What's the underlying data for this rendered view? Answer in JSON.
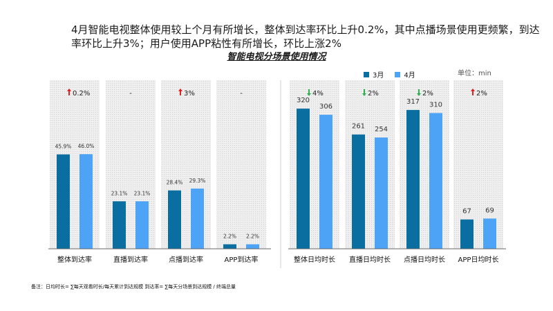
{
  "headline": "4月智能电视整体使用较上个月有所增长，整体到达率环比上升0.2%，其中点播场景使用更频繁，到达率环比上升3%；用户使用APP粘性有所增长，环比上涨2%",
  "subtitle": "智能电视分场景使用情况",
  "unit_label": "单位：min",
  "note": "备注：日均时长= ∑每天观看时长/每天累计到达规模    到达率= ∑每天分场景到达规模  / 终端总量",
  "colors": {
    "march": "#0a6fa0",
    "april": "#4da3f5",
    "up": "#e02020",
    "down": "#2bb24c",
    "panel": "#ececec"
  },
  "chart_data": [
    {
      "type": "bar",
      "title": "",
      "categories": [
        "整体到达率",
        "直播到达率",
        "点播到达率",
        "APP到达率"
      ],
      "series": [
        {
          "name": "3月",
          "values": [
            45.9,
            23.1,
            28.4,
            2.2
          ],
          "labels": [
            "45.9%",
            "23.1%",
            "28.4%",
            "2.2%"
          ]
        },
        {
          "name": "4月",
          "values": [
            46.0,
            23.1,
            29.3,
            2.2
          ],
          "labels": [
            "46.0%",
            "23.1%",
            "29.3%",
            "2.2%"
          ]
        }
      ],
      "changes": [
        {
          "text": "0.2%",
          "dir": "up"
        },
        {
          "text": "-",
          "dir": "none"
        },
        {
          "text": "3%",
          "dir": "up"
        },
        {
          "text": "-",
          "dir": "none"
        }
      ],
      "ylim": [
        0,
        82
      ]
    },
    {
      "type": "bar",
      "title": "",
      "categories": [
        "整体日均时长",
        "直播日均时长",
        "点播日均时长",
        "APP日均时长"
      ],
      "series": [
        {
          "name": "3月",
          "values": [
            320,
            261,
            317,
            67
          ],
          "labels": [
            "320",
            "261",
            "317",
            "67"
          ]
        },
        {
          "name": "4月",
          "values": [
            306,
            254,
            310,
            69
          ],
          "labels": [
            "306",
            "254",
            "310",
            "69"
          ]
        }
      ],
      "changes": [
        {
          "text": "4%",
          "dir": "down"
        },
        {
          "text": "2%",
          "dir": "down"
        },
        {
          "text": "2%",
          "dir": "down"
        },
        {
          "text": "2%",
          "dir": "up"
        }
      ],
      "ylim": [
        0,
        385
      ]
    }
  ]
}
